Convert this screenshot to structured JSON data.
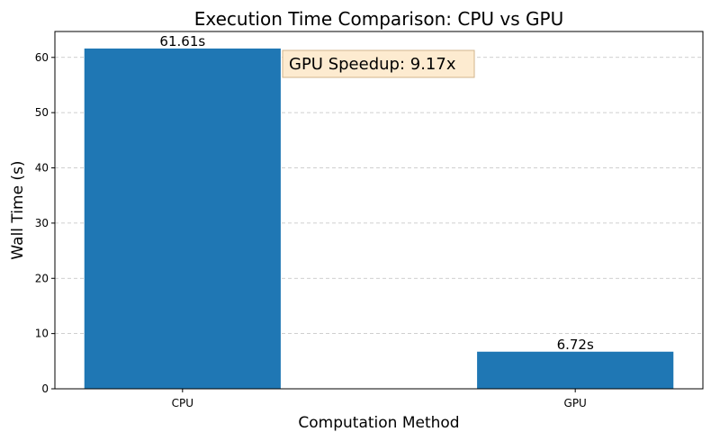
{
  "chart_data": {
    "type": "bar",
    "title": "Execution Time Comparison: CPU vs GPU",
    "xlabel": "Computation Method",
    "ylabel": "Wall Time (s)",
    "categories": [
      "CPU",
      "GPU"
    ],
    "values": [
      61.61,
      6.72
    ],
    "value_labels": [
      "61.61s",
      "6.72s"
    ],
    "ylim": [
      0,
      64.69
    ],
    "yticks": [
      0,
      10,
      20,
      30,
      40,
      50,
      60
    ],
    "grid": "y-dashed",
    "bar_color": "#1f77b4",
    "annotation": {
      "text": "GPU Speedup: 9.17x",
      "box_fill": "#fdebd0",
      "box_edge": "#d2b48c"
    }
  }
}
